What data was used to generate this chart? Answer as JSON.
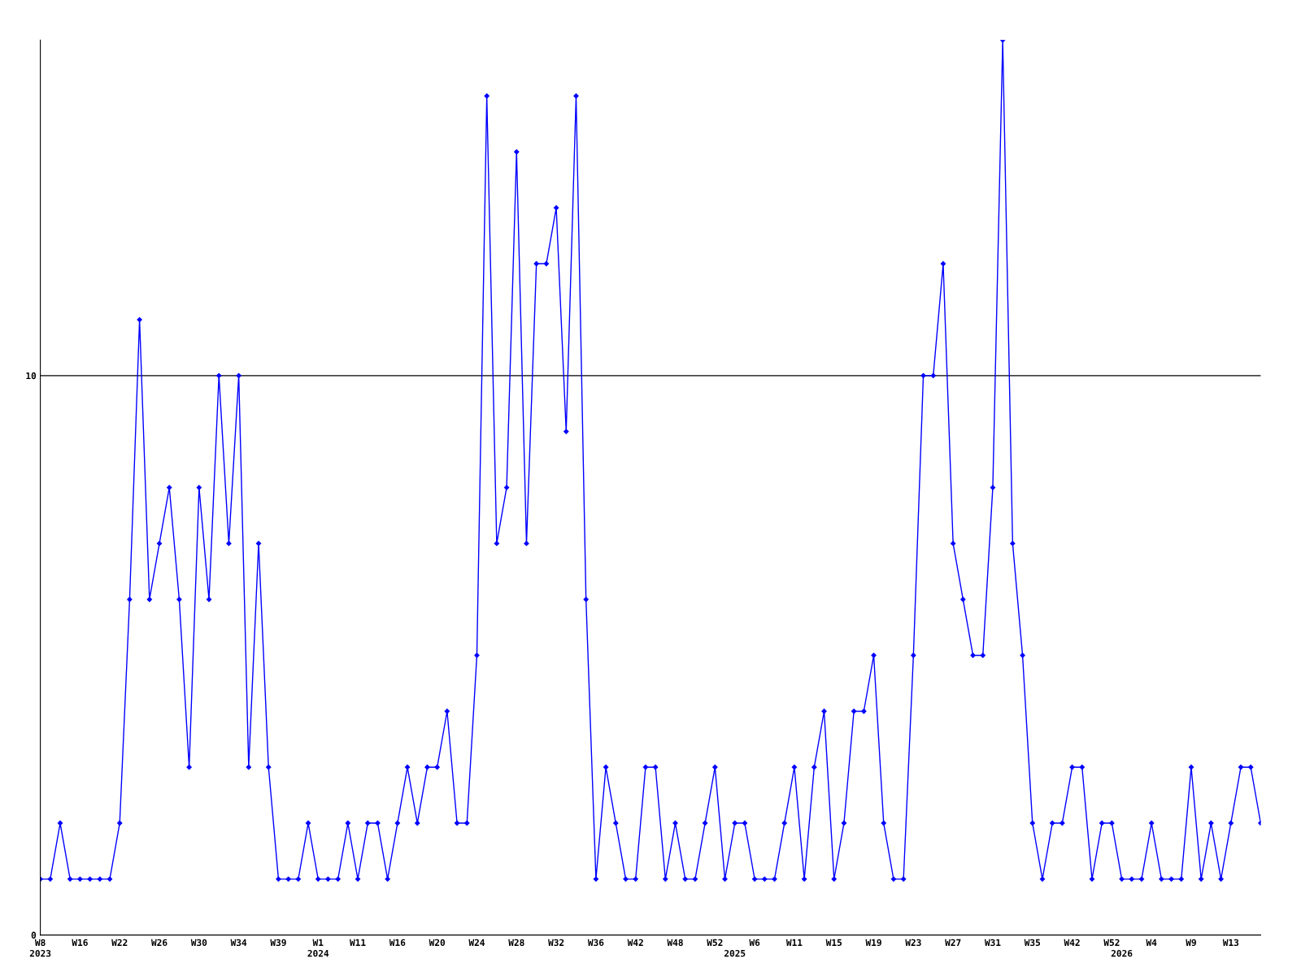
{
  "chart_data": {
    "type": "line",
    "categories": [
      "W8\n2023",
      null,
      null,
      null,
      "W16",
      null,
      null,
      null,
      "W22",
      null,
      null,
      null,
      "W26",
      null,
      null,
      null,
      "W30",
      null,
      null,
      null,
      "W34",
      null,
      null,
      null,
      "W39",
      null,
      null,
      null,
      "W1\n2024",
      null,
      null,
      null,
      "W11",
      null,
      null,
      null,
      "W16",
      null,
      null,
      null,
      "W20",
      null,
      null,
      null,
      "W24",
      null,
      null,
      null,
      "W28",
      null,
      null,
      null,
      "W32",
      null,
      null,
      null,
      "W36",
      null,
      null,
      null,
      "W42",
      null,
      null,
      null,
      "W48",
      null,
      null,
      null,
      "W52",
      null,
      "\n2025",
      null,
      "W6",
      null,
      null,
      null,
      "W11",
      null,
      null,
      null,
      "W15",
      null,
      null,
      null,
      "W19",
      null,
      null,
      null,
      "W23",
      null,
      null,
      null,
      "W27",
      null,
      null,
      null,
      "W31",
      null,
      null,
      null,
      "W35",
      null,
      null,
      null,
      "W42",
      null,
      null,
      null,
      "W52",
      "\n2026",
      null,
      null,
      "W4",
      null,
      null,
      null,
      "W9",
      null,
      null,
      null,
      "W13",
      null,
      null,
      null
    ],
    "series": [
      {
        "color": "#0000ff",
        "values": [
          1,
          1,
          2,
          1,
          1,
          1,
          1,
          1,
          2,
          6,
          11,
          6,
          7,
          8,
          6,
          3,
          8,
          6,
          10,
          7,
          10,
          3,
          7,
          3,
          1,
          1,
          1,
          2,
          1,
          1,
          1,
          2,
          1,
          2,
          2,
          1,
          2,
          3,
          2,
          3,
          3,
          4,
          2,
          2,
          5,
          15,
          7,
          8,
          14,
          7,
          12,
          12,
          13,
          9,
          15,
          6,
          1,
          3,
          2,
          1,
          1,
          3,
          3,
          1,
          2,
          1,
          1,
          2,
          3,
          1,
          2,
          2,
          1,
          1,
          1,
          2,
          3,
          1,
          3,
          4,
          1,
          2,
          4,
          4,
          5,
          2,
          1,
          1,
          5,
          10,
          10,
          12,
          7,
          6,
          5,
          5,
          8,
          16,
          7,
          5,
          2,
          1,
          2,
          2,
          3,
          3,
          1,
          2,
          2,
          1,
          1,
          1,
          2,
          1,
          1,
          1,
          3,
          1,
          2,
          1,
          2,
          3,
          3,
          2
        ]
      }
    ],
    "ylim": [
      0,
      16
    ],
    "yticks": [
      0,
      10
    ],
    "grid": "y",
    "marker": "diamond",
    "line_style": "solid"
  }
}
